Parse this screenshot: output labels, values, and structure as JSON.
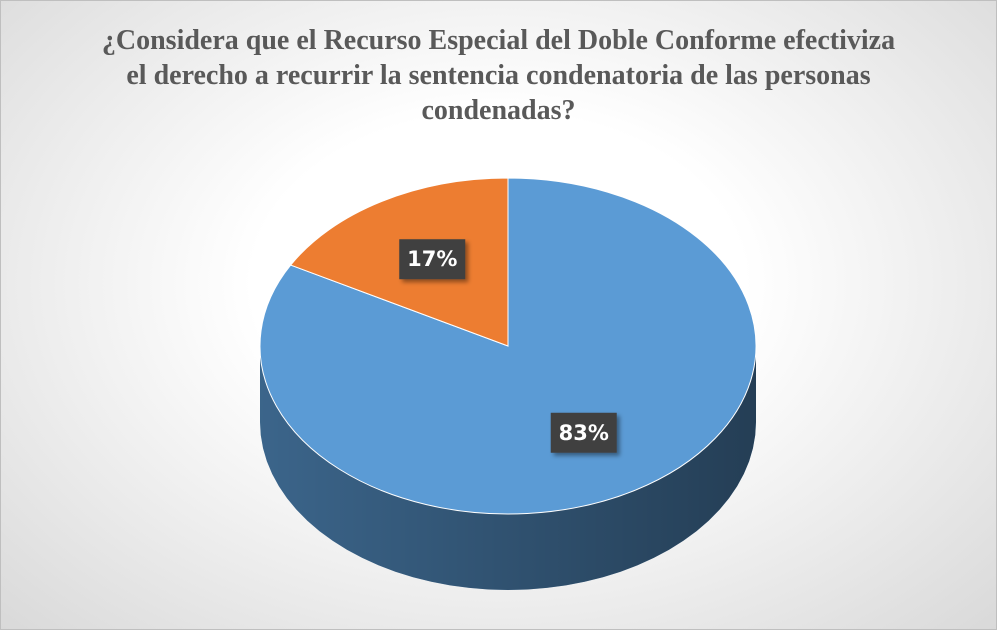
{
  "chart_data": {
    "type": "pie",
    "title": "¿Considera que el Recurso Especial del Doble Conforme efectiviza el derecho a recurrir la sentencia condenatoria de las personas condenadas?",
    "values": [
      83,
      17
    ],
    "value_labels": [
      "83%",
      "17%"
    ],
    "colors": [
      "#5b9bd5",
      "#ed7d31"
    ]
  }
}
